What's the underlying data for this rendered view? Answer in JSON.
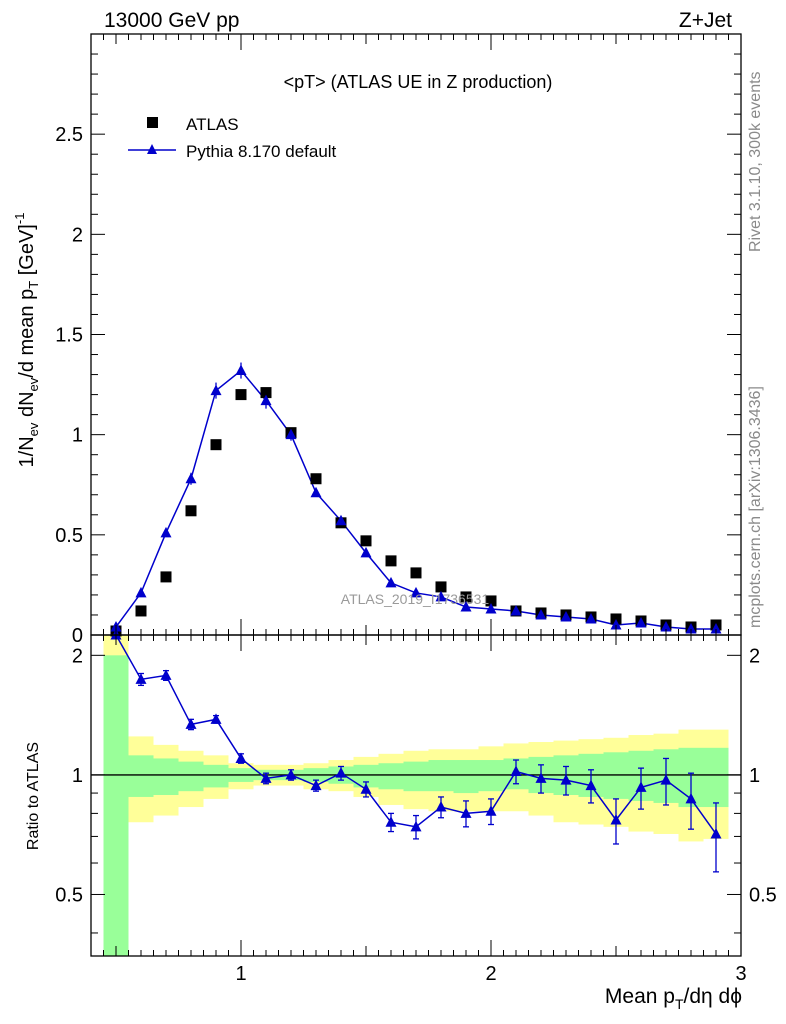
{
  "header": {
    "left": "13000 GeV pp",
    "right": "Z+Jet"
  },
  "plot_title": "<pT> (ATLAS UE in Z production)",
  "side_labels": {
    "rivet": "Rivet 3.1.10,  300k events",
    "mcplots": "mcplots.cern.ch [arXiv:1306.3436]"
  },
  "watermark": "ATLAS_2019_I1736531",
  "colors": {
    "data": "#000000",
    "mc": "#0000cc",
    "band_inner": "#99ff99",
    "band_outer": "#ffff99"
  },
  "chart_data": [
    {
      "type": "scatter",
      "ylabel": "1/N_ev dN_ev/d mean p_T [GeV]^-1",
      "ylim": [
        0,
        3.0
      ],
      "yticks": [
        "0",
        "0.5",
        "1",
        "1.5",
        "2",
        "2.5"
      ],
      "xlim": [
        0.4,
        3.0
      ],
      "legend": {
        "position": "top-left",
        "entries": [
          "ATLAS",
          "Pythia 8.170 default"
        ]
      },
      "x": [
        0.5,
        0.6,
        0.7,
        0.8,
        0.9,
        1.0,
        1.1,
        1.2,
        1.3,
        1.4,
        1.5,
        1.6,
        1.7,
        1.8,
        1.9,
        2.0,
        2.1,
        2.2,
        2.3,
        2.4,
        2.5,
        2.6,
        2.7,
        2.8,
        2.9
      ],
      "series": [
        {
          "name": "ATLAS",
          "marker": "square",
          "values": [
            0.02,
            0.12,
            0.29,
            0.62,
            0.95,
            1.2,
            1.21,
            1.01,
            0.78,
            0.56,
            0.47,
            0.37,
            0.31,
            0.24,
            0.19,
            0.17,
            0.12,
            0.11,
            0.1,
            0.09,
            0.08,
            0.07,
            0.05,
            0.04,
            0.05
          ]
        },
        {
          "name": "Pythia 8.170 default",
          "marker": "triangle",
          "values": [
            0.04,
            0.21,
            0.51,
            0.78,
            1.22,
            1.32,
            1.17,
            1.0,
            0.71,
            0.57,
            0.41,
            0.26,
            0.21,
            0.19,
            0.14,
            0.13,
            0.12,
            0.1,
            0.09,
            0.08,
            0.05,
            0.06,
            0.04,
            0.03,
            0.03
          ],
          "errors": [
            0.01,
            0.01,
            0.02,
            0.03,
            0.04,
            0.04,
            0.04,
            0.03,
            0.02,
            0.02,
            0.01,
            0.01,
            0.01,
            0.01,
            0.01,
            0.01,
            0.01,
            0.01,
            0.01,
            0.01,
            0.01,
            0.01,
            0.01,
            0.01,
            0.01
          ]
        }
      ]
    },
    {
      "type": "line",
      "ylabel": "Ratio to ATLAS",
      "xlabel": "Mean p_T/dη dϕ",
      "xlim": [
        0.4,
        3.0
      ],
      "xticks": [
        "1",
        "2",
        "3"
      ],
      "ylim": [
        0.35,
        2.25
      ],
      "yticks": [
        "0.5",
        "1",
        "2"
      ],
      "reference_line": 1,
      "bands": {
        "x_edges": [
          0.45,
          0.55,
          0.65,
          0.75,
          0.85,
          0.95,
          1.05,
          1.15,
          1.25,
          1.35,
          1.45,
          1.55,
          1.65,
          1.75,
          1.85,
          1.95,
          2.05,
          2.15,
          2.25,
          2.35,
          2.45,
          2.55,
          2.65,
          2.75,
          2.85,
          2.95
        ],
        "inner_low": [
          0.35,
          0.88,
          0.89,
          0.91,
          0.93,
          0.96,
          0.97,
          0.97,
          0.96,
          0.95,
          0.93,
          0.92,
          0.91,
          0.91,
          0.9,
          0.91,
          0.92,
          0.9,
          0.89,
          0.88,
          0.87,
          0.86,
          0.85,
          0.83,
          0.83
        ],
        "inner_high": [
          2.0,
          1.12,
          1.1,
          1.08,
          1.06,
          1.04,
          1.03,
          1.03,
          1.04,
          1.05,
          1.06,
          1.07,
          1.08,
          1.09,
          1.09,
          1.09,
          1.1,
          1.11,
          1.12,
          1.13,
          1.14,
          1.15,
          1.16,
          1.17,
          1.17
        ],
        "outer_low": [
          0.35,
          0.76,
          0.79,
          0.83,
          0.87,
          0.92,
          0.94,
          0.94,
          0.92,
          0.91,
          0.88,
          0.84,
          0.82,
          0.81,
          0.81,
          0.81,
          0.81,
          0.79,
          0.76,
          0.75,
          0.74,
          0.72,
          0.71,
          0.68,
          0.69
        ],
        "outer_high": [
          2.3,
          1.25,
          1.19,
          1.15,
          1.12,
          1.07,
          1.06,
          1.06,
          1.07,
          1.09,
          1.11,
          1.13,
          1.15,
          1.16,
          1.16,
          1.18,
          1.2,
          1.21,
          1.22,
          1.23,
          1.24,
          1.26,
          1.27,
          1.3,
          1.3
        ]
      },
      "series": [
        {
          "name": "Pythia 8.170 default",
          "x": [
            0.5,
            0.6,
            0.7,
            0.8,
            0.9,
            1.0,
            1.1,
            1.2,
            1.3,
            1.4,
            1.5,
            1.6,
            1.7,
            1.8,
            1.9,
            2.0,
            2.1,
            2.2,
            2.3,
            2.4,
            2.5,
            2.6,
            2.7,
            2.8,
            2.9
          ],
          "values": [
            2.3,
            1.74,
            1.78,
            1.34,
            1.38,
            1.1,
            0.98,
            1.0,
            0.94,
            1.01,
            0.92,
            0.76,
            0.74,
            0.83,
            0.8,
            0.81,
            1.02,
            0.98,
            0.97,
            0.94,
            0.77,
            0.93,
            0.97,
            0.87,
            0.71
          ],
          "errors": [
            0.0,
            0.06,
            0.05,
            0.04,
            0.03,
            0.03,
            0.03,
            0.03,
            0.03,
            0.04,
            0.04,
            0.04,
            0.05,
            0.05,
            0.06,
            0.06,
            0.07,
            0.08,
            0.08,
            0.09,
            0.1,
            0.11,
            0.13,
            0.14,
            0.14
          ]
        }
      ]
    }
  ]
}
